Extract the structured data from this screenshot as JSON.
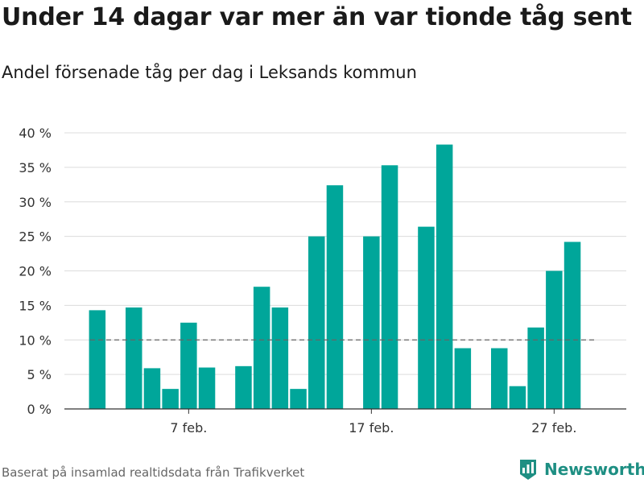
{
  "chart_data": {
    "type": "bar",
    "title": "Under 14 dagar var mer än var tionde tåg sent",
    "subtitle": "Andel försenade tåg per dag i Leksands kommun",
    "x_unit": "day of February",
    "x": [
      2,
      3,
      4,
      5,
      6,
      7,
      8,
      9,
      10,
      11,
      12,
      13,
      14,
      15,
      16,
      17,
      18,
      19,
      20,
      21,
      22,
      23,
      24,
      25,
      26,
      27,
      28
    ],
    "values": [
      14.3,
      null,
      14.7,
      5.9,
      2.9,
      12.5,
      6.0,
      null,
      6.2,
      17.7,
      14.7,
      2.9,
      25.0,
      32.4,
      null,
      25.0,
      35.3,
      null,
      26.4,
      38.3,
      8.8,
      null,
      8.8,
      3.3,
      11.8,
      20.0,
      24.2
    ],
    "ylim": [
      0,
      40
    ],
    "yticks": [
      {
        "value": 0,
        "label": "0 %"
      },
      {
        "value": 5,
        "label": "5 %"
      },
      {
        "value": 10,
        "label": "10 %"
      },
      {
        "value": 15,
        "label": "15 %"
      },
      {
        "value": 20,
        "label": "20 %"
      },
      {
        "value": 25,
        "label": "25 %"
      },
      {
        "value": 30,
        "label": "30 %"
      },
      {
        "value": 35,
        "label": "35 %"
      },
      {
        "value": 40,
        "label": "40 %"
      }
    ],
    "xticks": [
      {
        "value": 7,
        "label": "7 feb."
      },
      {
        "value": 17,
        "label": "17 feb."
      },
      {
        "value": 27,
        "label": "27 feb."
      }
    ],
    "reference_line": {
      "value": 10,
      "style": "dashed"
    },
    "bar_color": "#00a69a",
    "grid": true
  },
  "footer": {
    "source": "Baserat på insamlad realtidsdata från Trafikverket",
    "brand": "Newsworthy",
    "brand_color": "#1e8f83"
  }
}
